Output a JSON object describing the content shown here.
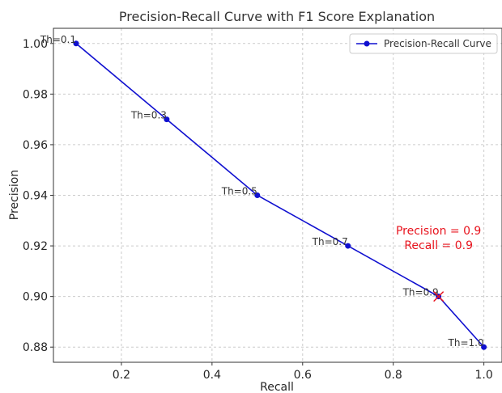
{
  "chart_data": {
    "type": "line",
    "title": "Precision-Recall Curve with F1 Score Explanation",
    "xlabel": "Recall",
    "ylabel": "Precision",
    "xlim": [
      0.05,
      1.04
    ],
    "ylim": [
      0.874,
      1.006
    ],
    "xticks": [
      "0.2",
      "0.4",
      "0.6",
      "0.8",
      "1.0"
    ],
    "yticks": [
      "0.88",
      "0.90",
      "0.92",
      "0.94",
      "0.96",
      "0.98",
      "1.00"
    ],
    "grid": true,
    "legend_position": "top-right",
    "series": [
      {
        "name": "Precision-Recall Curve",
        "color": "#1010d0",
        "x": [
          0.1,
          0.3,
          0.5,
          0.7,
          0.9,
          1.0
        ],
        "y": [
          1.0,
          0.97,
          0.94,
          0.92,
          0.9,
          0.88
        ],
        "point_labels": [
          "Th=0.1",
          "Th=0.3",
          "Th=0.5",
          "Th=0.7",
          "Th=0.9",
          "Th=1.0"
        ]
      }
    ],
    "highlight": {
      "x": 0.9,
      "y": 0.9,
      "marker": "x",
      "color": "#e8141e"
    },
    "annotation": {
      "lines": [
        "Precision = 0.9",
        "Recall = 0.9"
      ],
      "x": 0.9,
      "y": 0.922,
      "color": "#e8141e"
    }
  }
}
